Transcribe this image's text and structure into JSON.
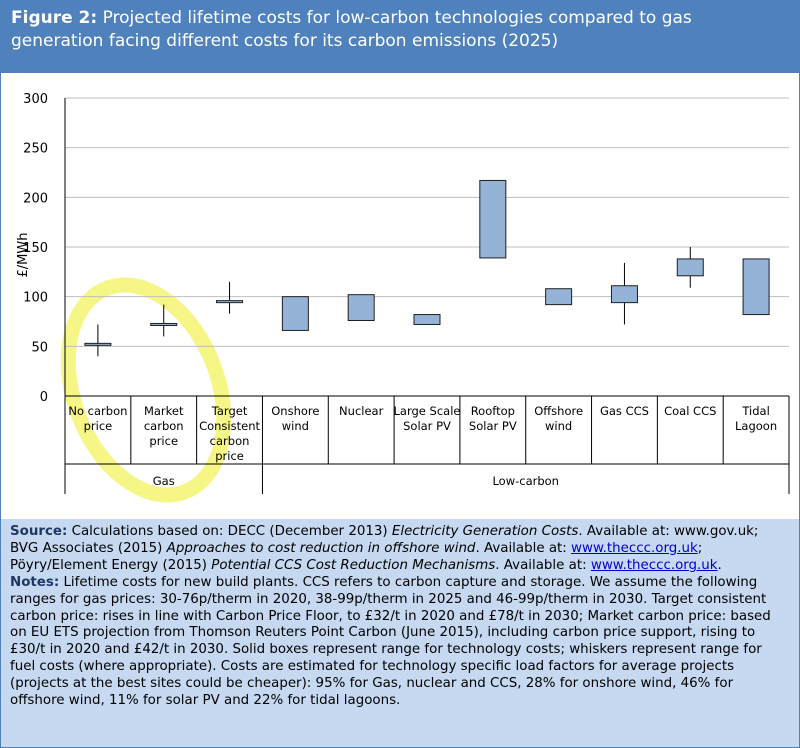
{
  "header": {
    "figure_label": "Figure 2:",
    "title": "Projected lifetime costs for low-carbon technologies compared to gas generation facing different costs for its carbon emissions (2025)"
  },
  "chart_data": {
    "type": "box",
    "ylabel": "£/MWh",
    "ylim": [
      0,
      300
    ],
    "yticks": [
      0,
      50,
      100,
      150,
      200,
      250,
      300
    ],
    "grid": true,
    "categories": [
      {
        "label": "No carbon price",
        "lines": [
          "No carbon",
          "price"
        ],
        "group": "Gas",
        "box": [
          51,
          53
        ],
        "whisker": [
          40,
          72
        ]
      },
      {
        "label": "Market carbon price",
        "lines": [
          "Market",
          "carbon",
          "price"
        ],
        "group": "Gas",
        "box": [
          71,
          73
        ],
        "whisker": [
          60,
          92
        ]
      },
      {
        "label": "Target Consistent carbon price",
        "lines": [
          "Target",
          "Consistent",
          "carbon",
          "price"
        ],
        "group": "Gas",
        "box": [
          94,
          96
        ],
        "whisker": [
          83,
          115
        ]
      },
      {
        "label": "Onshore wind",
        "lines": [
          "Onshore",
          "wind"
        ],
        "group": "Low-carbon",
        "box": [
          66,
          100
        ],
        "whisker": null
      },
      {
        "label": "Nuclear",
        "lines": [
          "Nuclear"
        ],
        "group": "Low-carbon",
        "box": [
          76,
          102
        ],
        "whisker": null
      },
      {
        "label": "Large Scale Solar PV",
        "lines": [
          "Large Scale",
          "Solar PV"
        ],
        "group": "Low-carbon",
        "box": [
          72,
          82
        ],
        "whisker": null
      },
      {
        "label": "Rooftop Solar PV",
        "lines": [
          "Rooftop",
          "Solar PV"
        ],
        "group": "Low-carbon",
        "box": [
          139,
          217
        ],
        "whisker": null
      },
      {
        "label": "Offshore wind",
        "lines": [
          "Offshore",
          "wind"
        ],
        "group": "Low-carbon",
        "box": [
          92,
          108
        ],
        "whisker": null
      },
      {
        "label": "Gas CCS",
        "lines": [
          "Gas CCS"
        ],
        "group": "Low-carbon",
        "box": [
          94,
          111
        ],
        "whisker": [
          72,
          134
        ]
      },
      {
        "label": "Coal CCS",
        "lines": [
          "Coal CCS"
        ],
        "group": "Low-carbon",
        "box": [
          121,
          138
        ],
        "whisker": [
          109,
          150
        ]
      },
      {
        "label": "Tidal Lagoon",
        "lines": [
          "Tidal",
          "Lagoon"
        ],
        "group": "Low-carbon",
        "box": [
          82,
          138
        ],
        "whisker": null
      }
    ],
    "groups": [
      {
        "name": "Gas",
        "count": 3
      },
      {
        "name": "Low-carbon",
        "count": 8
      }
    ],
    "colors": {
      "box_fill": "#95b3d7",
      "box_stroke": "#1f1f1f",
      "grid": "#bfbfbf",
      "highlight": "#f3f570"
    }
  },
  "footer": {
    "source_label": "Source:",
    "source_text_1": " Calculations based on: DECC (December 2013) ",
    "source_italic_1": "Electricity Generation Costs",
    "source_text_2": ". Available at: www.gov.uk; BVG Associates (2015) ",
    "source_italic_2": "Approaches to cost reduction in offshore wind",
    "source_text_3": ". Available at: ",
    "source_link_1": "www.theccc.org.uk",
    "source_text_4": "; Pöyry/Element Energy (2015) ",
    "source_italic_3": "Potential CCS Cost Reduction Mechanisms",
    "source_text_5": ". Available at: ",
    "source_link_2": "www.theccc.org.uk",
    "source_text_6": ".",
    "notes_label": "Notes:",
    "notes_text": " Lifetime costs for new build plants. CCS refers to carbon capture and storage. We assume the following ranges for gas prices: 30-76p/therm in 2020, 38-99p/therm in 2025 and 46-99p/therm in 2030. Target consistent carbon price: rises in line with Carbon Price Floor, to £32/t in 2020 and £78/t in 2030; Market carbon price: based on EU ETS projection from Thomson Reuters Point Carbon (June 2015), including carbon price support, rising to £30/t in 2020 and £42/t in 2030. Solid boxes represent range for technology costs; whiskers represent range for fuel costs (where appropriate). Costs are estimated for technology specific load factors for average projects (projects at the best sites could be cheaper): 95% for Gas, nuclear and CCS, 28% for onshore wind, 46% for offshore wind, 11% for solar PV and 22% for tidal lagoons."
  }
}
